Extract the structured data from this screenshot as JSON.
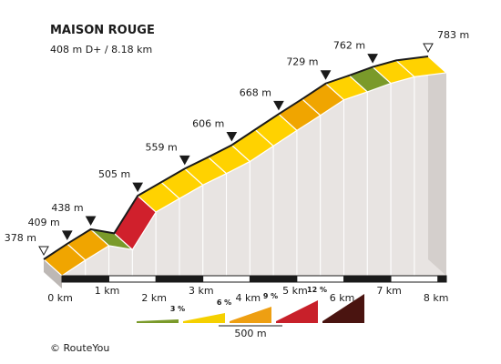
{
  "chart_data": {
    "type": "area",
    "title": "MAISON ROUGE",
    "subtitle": "408 m D+ / 8.18 km",
    "xlabel": "",
    "ylabel": "",
    "x_unit": "km",
    "xlim": [
      0,
      8.18
    ],
    "ylim": [
      378,
      783
    ],
    "x_ticks": [
      {
        "value": 0,
        "label": "0 km"
      },
      {
        "value": 1,
        "label": "1 km"
      },
      {
        "value": 2,
        "label": "2 km"
      },
      {
        "value": 3,
        "label": "3 km"
      },
      {
        "value": 4,
        "label": "4 km"
      },
      {
        "value": 5,
        "label": "5 km"
      },
      {
        "value": 6,
        "label": "6 km"
      },
      {
        "value": 7,
        "label": "7 km"
      },
      {
        "value": 8,
        "label": "8 km"
      }
    ],
    "profile": [
      {
        "x": 0.0,
        "y": 378
      },
      {
        "x": 0.5,
        "y": 409
      },
      {
        "x": 1.0,
        "y": 438
      },
      {
        "x": 1.5,
        "y": 430
      },
      {
        "x": 2.0,
        "y": 505
      },
      {
        "x": 2.5,
        "y": 532
      },
      {
        "x": 3.0,
        "y": 559
      },
      {
        "x": 3.5,
        "y": 582
      },
      {
        "x": 4.0,
        "y": 606
      },
      {
        "x": 4.5,
        "y": 637
      },
      {
        "x": 5.0,
        "y": 668
      },
      {
        "x": 5.5,
        "y": 698
      },
      {
        "x": 6.0,
        "y": 729
      },
      {
        "x": 6.5,
        "y": 745
      },
      {
        "x": 7.0,
        "y": 762
      },
      {
        "x": 7.5,
        "y": 775
      },
      {
        "x": 8.18,
        "y": 783
      }
    ],
    "segments": [
      {
        "from": 0.0,
        "to": 0.5,
        "category": "9 %"
      },
      {
        "from": 0.5,
        "to": 1.0,
        "category": "9 %"
      },
      {
        "from": 1.0,
        "to": 1.5,
        "category": "3 %"
      },
      {
        "from": 1.5,
        "to": 2.0,
        "category": "12 %"
      },
      {
        "from": 2.0,
        "to": 2.5,
        "category": "6 %"
      },
      {
        "from": 2.5,
        "to": 3.0,
        "category": "6 %"
      },
      {
        "from": 3.0,
        "to": 3.5,
        "category": "6 %"
      },
      {
        "from": 3.5,
        "to": 4.0,
        "category": "6 %"
      },
      {
        "from": 4.0,
        "to": 4.5,
        "category": "6 %"
      },
      {
        "from": 4.5,
        "to": 5.0,
        "category": "6 %"
      },
      {
        "from": 5.0,
        "to": 5.5,
        "category": "9 %"
      },
      {
        "from": 5.5,
        "to": 6.0,
        "category": "9 %"
      },
      {
        "from": 6.0,
        "to": 6.5,
        "category": "6 %"
      },
      {
        "from": 6.5,
        "to": 7.0,
        "category": "3 %"
      },
      {
        "from": 7.0,
        "to": 7.5,
        "category": "6 %"
      },
      {
        "from": 7.5,
        "to": 8.18,
        "category": "6 %"
      }
    ],
    "elevation_markers": [
      {
        "x": 0.0,
        "label": "378 m",
        "kind": "start"
      },
      {
        "x": 0.5,
        "label": "409 m",
        "kind": "point"
      },
      {
        "x": 1.0,
        "label": "438 m",
        "kind": "point"
      },
      {
        "x": 2.0,
        "label": "505 m",
        "kind": "point"
      },
      {
        "x": 3.0,
        "label": "559 m",
        "kind": "point"
      },
      {
        "x": 4.0,
        "label": "606 m",
        "kind": "point"
      },
      {
        "x": 5.0,
        "label": "668 m",
        "kind": "point"
      },
      {
        "x": 6.0,
        "label": "729 m",
        "kind": "point"
      },
      {
        "x": 7.0,
        "label": "762 m",
        "kind": "point"
      },
      {
        "x": 8.18,
        "label": "783 m",
        "kind": "end"
      }
    ],
    "legend": {
      "placement": "bottom",
      "items": [
        {
          "label": "",
          "color": "#7a9a2a"
        },
        {
          "label": "3 %",
          "color": "#f5d000"
        },
        {
          "label": "6 %",
          "color": "#ee9f12"
        },
        {
          "label": "9 %",
          "color": "#c8202a"
        },
        {
          "label": "12 %",
          "color": "#4a1410"
        }
      ],
      "scale_label": "500 m"
    },
    "colors": {
      "3 %": "#7a9a2a",
      "6 %": "#f5d000",
      "9 %": "#ee9f12",
      "12 %": "#c8202a",
      "side": "#e8e4e2",
      "side_line": "#ffffff",
      "marker": "#1a1a1a",
      "base": "#1a1a1a",
      "top_fill_3": "#7a9a2a",
      "top_fill_6": "#ffd200",
      "top_fill_9": "#f0a500",
      "top_fill_12": "#d0202c"
    }
  },
  "credit": "© RouteYou"
}
